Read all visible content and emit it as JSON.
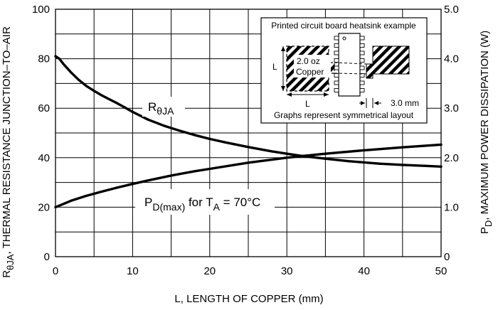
{
  "chart_data": {
    "type": "line",
    "xlabel": "L, LENGTH OF COPPER (mm)",
    "ylabel_left": {
      "base": "R",
      "sub": "θJA",
      "rest": ", THERMAL RESISTANCE JUNCTION–TO–AIR"
    },
    "ylabel_right": {
      "base": "P",
      "sub": "D",
      "rest": ", MAXIMUM POWER DISSIPATION (W)"
    },
    "xlim": [
      0,
      50
    ],
    "ylim_left": [
      0,
      100
    ],
    "ylim_right": [
      0,
      5.0
    ],
    "x_ticks": [
      0,
      10,
      20,
      30,
      40,
      50
    ],
    "x_tick_labels": [
      "0",
      "10",
      "20",
      "30",
      "40",
      "50"
    ],
    "y_left_ticks": [
      0,
      20,
      40,
      60,
      80,
      100
    ],
    "y_left_tick_labels": [
      "0",
      "20",
      "40",
      "60",
      "80",
      "100"
    ],
    "y_right_ticks": [
      0,
      1,
      2,
      3,
      4,
      5
    ],
    "y_right_tick_labels": [
      "0",
      "1.0",
      "2.0",
      "3.0",
      "4.0",
      "5.0"
    ],
    "grid": true,
    "series": [
      {
        "name": "RθJA",
        "label": {
          "base": "R",
          "sub": "θJA"
        },
        "axis": "left",
        "x": [
          0,
          0.5,
          1,
          2,
          3,
          4,
          5,
          6,
          7,
          8,
          9,
          10,
          12,
          14,
          16,
          18,
          20,
          22,
          25,
          28,
          30,
          32,
          35,
          38,
          40,
          42,
          45,
          48,
          50
        ],
        "values": [
          81,
          80,
          78,
          74.5,
          71.5,
          69,
          67,
          65.2,
          63.6,
          62.0,
          60.3,
          58.5,
          55.4,
          53,
          51,
          49.2,
          47.6,
          46.2,
          44.3,
          42.6,
          41.6,
          40.7,
          39.6,
          38.6,
          38.1,
          37.6,
          37.1,
          36.7,
          36.4
        ]
      },
      {
        "name": "PD(max) for TA = 70°C",
        "label": {
          "base": "P",
          "sub": "D(max)",
          "mid": " for T",
          "sub2": "A",
          "end": " = 70°C"
        },
        "axis": "left",
        "x": [
          0,
          2,
          4,
          6,
          8,
          10,
          12,
          15,
          18,
          20,
          25,
          30,
          32,
          35,
          40,
          45,
          50
        ],
        "values": [
          20,
          22.6,
          24.6,
          26.3,
          27.9,
          29.4,
          30.8,
          32.8,
          34.5,
          35.5,
          38,
          40,
          40.7,
          41.6,
          43,
          44.2,
          45.3
        ]
      }
    ],
    "annotations": {
      "inset_title": "Printed circuit board heatsink example",
      "inset_copper_line1": "2.0 oz",
      "inset_copper_line2": "Copper",
      "inset_L_vertical": "L",
      "inset_L_horizontal": "L",
      "inset_dimension": "3.0 mm",
      "inset_footer": "Graphs represent symmetrical layout"
    }
  }
}
